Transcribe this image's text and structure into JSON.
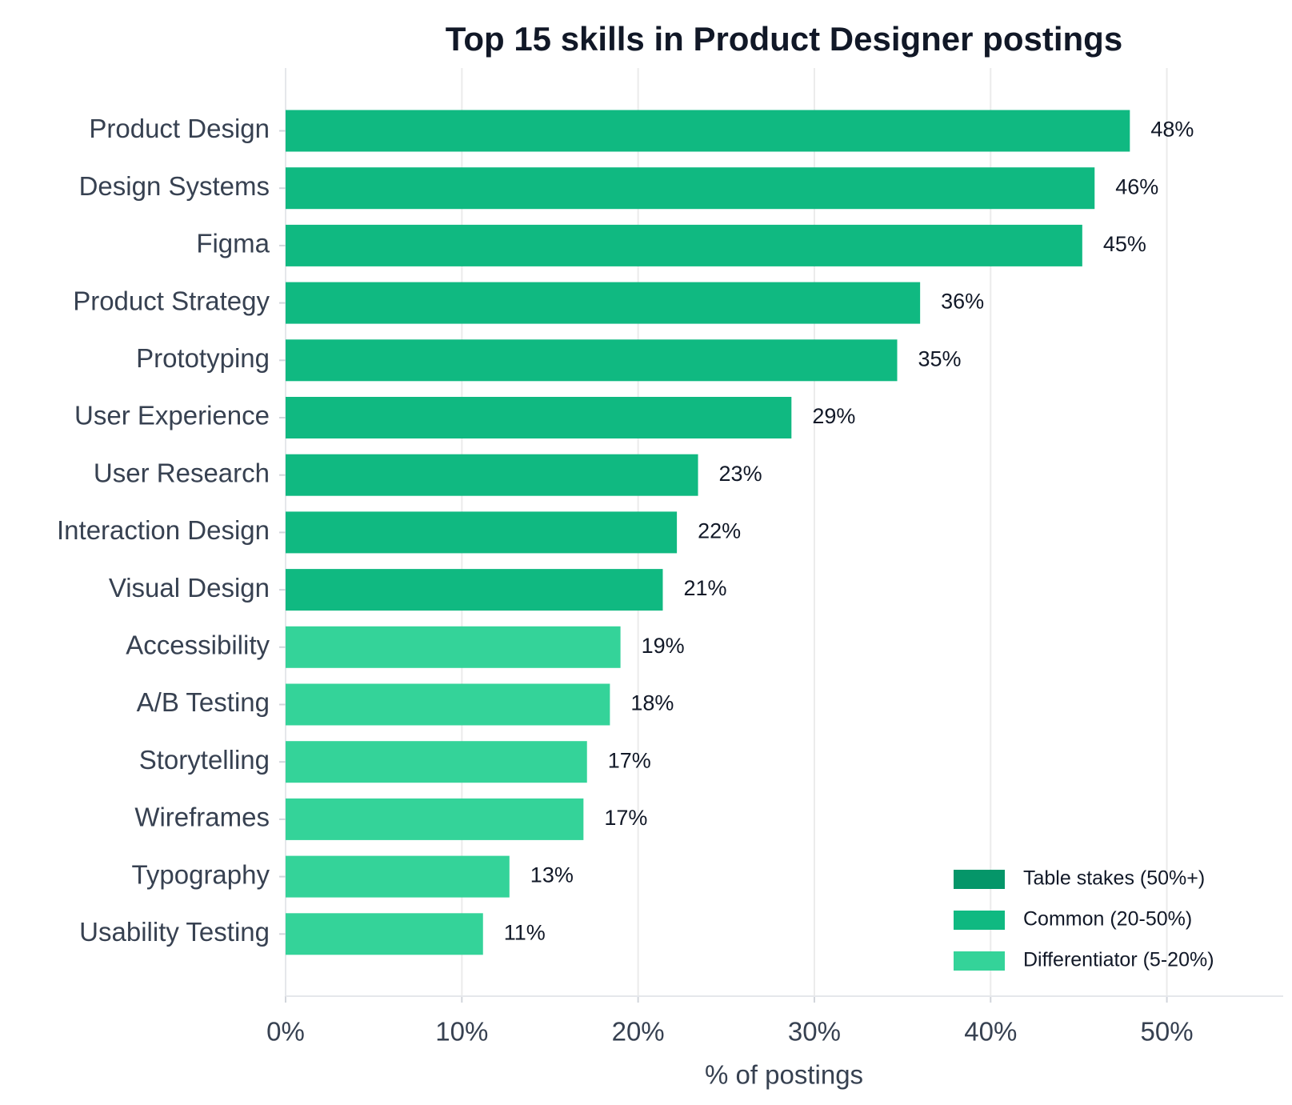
{
  "chart_data": {
    "type": "barh",
    "title": "Top 15 skills in Product Designer postings",
    "xlabel": "% of postings",
    "categories": [
      "Product Design",
      "Design Systems",
      "Figma",
      "Product Strategy",
      "Prototyping",
      "User Experience",
      "User Research",
      "Interaction Design",
      "Visual Design",
      "Accessibility",
      "A/B Testing",
      "Storytelling",
      "Wireframes",
      "Typography",
      "Usability Testing"
    ],
    "values": [
      47.9,
      45.9,
      45.2,
      36.0,
      34.7,
      28.7,
      23.4,
      22.2,
      21.4,
      19.0,
      18.4,
      17.1,
      16.9,
      12.7,
      11.2
    ],
    "value_labels": [
      "48%",
      "46%",
      "45%",
      "36%",
      "35%",
      "29%",
      "23%",
      "22%",
      "21%",
      "19%",
      "18%",
      "17%",
      "17%",
      "13%",
      "11%"
    ],
    "colors": [
      "#10b981",
      "#10b981",
      "#10b981",
      "#10b981",
      "#10b981",
      "#10b981",
      "#10b981",
      "#10b981",
      "#10b981",
      "#34d399",
      "#34d399",
      "#34d399",
      "#34d399",
      "#34d399",
      "#34d399"
    ],
    "xlim": [
      0,
      56.6
    ],
    "xticks": [
      {
        "value": 0,
        "label": "0%"
      },
      {
        "value": 10,
        "label": "10%"
      },
      {
        "value": 20,
        "label": "20%"
      },
      {
        "value": 30,
        "label": "30%"
      },
      {
        "value": 40,
        "label": "40%"
      },
      {
        "value": 50,
        "label": "50%"
      }
    ],
    "grid": true,
    "legend_position": "lower right",
    "legend": [
      {
        "label": "Table stakes (50%+)",
        "color": "#059669"
      },
      {
        "label": "Common (20-50%)",
        "color": "#10b981"
      },
      {
        "label": "Differentiator (5-20%)",
        "color": "#34d399"
      }
    ]
  }
}
